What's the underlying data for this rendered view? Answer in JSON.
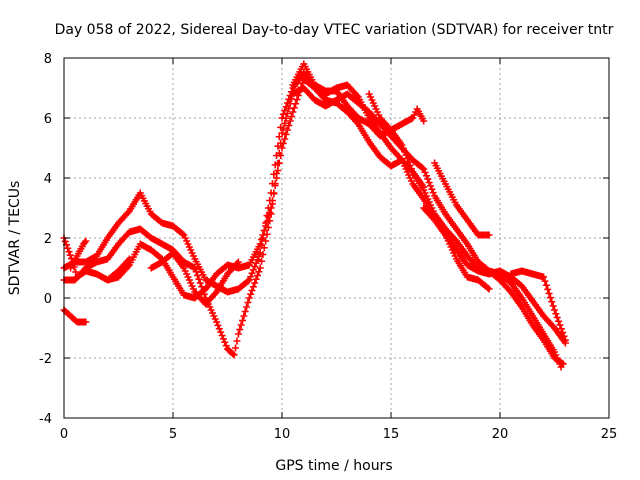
{
  "chart_data": {
    "type": "scatter",
    "title": "Day 058 of 2022, Sidereal Day-to-day VTEC variation (SDTVAR) for receiver tntr",
    "xlabel": "GPS time / hours",
    "ylabel": "SDTVAR / TECUs",
    "xlim": [
      0,
      25
    ],
    "ylim": [
      -4,
      8
    ],
    "xticks": [
      0,
      5,
      10,
      15,
      20,
      25
    ],
    "yticks": [
      -4,
      -2,
      0,
      2,
      4,
      6,
      8
    ],
    "grid": true,
    "marker": "plus",
    "marker_color": "#ff0000",
    "grid_color": "#a0a0a0",
    "series": [
      {
        "name": "trace-1",
        "points": [
          [
            0.0,
            1.0
          ],
          [
            0.5,
            1.2
          ],
          [
            1.0,
            1.2
          ],
          [
            1.5,
            1.4
          ],
          [
            2.0,
            2.0
          ],
          [
            2.5,
            2.5
          ],
          [
            3.0,
            2.9
          ],
          [
            3.5,
            3.5
          ],
          [
            4.0,
            2.8
          ],
          [
            4.5,
            2.5
          ],
          [
            5.0,
            2.4
          ],
          [
            5.5,
            2.1
          ],
          [
            6.0,
            1.3
          ],
          [
            6.5,
            0.6
          ],
          [
            7.0,
            0.4
          ],
          [
            7.5,
            0.2
          ],
          [
            8.0,
            0.3
          ],
          [
            8.5,
            0.6
          ],
          [
            9.0,
            1.5
          ],
          [
            9.5,
            3.5
          ],
          [
            10.0,
            6.0
          ],
          [
            10.5,
            7.0
          ],
          [
            11.0,
            7.5
          ],
          [
            11.5,
            7.0
          ],
          [
            12.0,
            6.8
          ],
          [
            12.5,
            7.0
          ],
          [
            13.0,
            7.1
          ],
          [
            13.5,
            6.7
          ],
          [
            14.0,
            6.0
          ],
          [
            14.5,
            5.5
          ],
          [
            15.0,
            5.0
          ],
          [
            15.5,
            4.6
          ],
          [
            16.0,
            4.2
          ],
          [
            16.5,
            3.6
          ],
          [
            17.0,
            2.8
          ],
          [
            17.5,
            2.3
          ],
          [
            18.0,
            1.9
          ],
          [
            18.5,
            1.4
          ],
          [
            19.0,
            1.0
          ],
          [
            19.5,
            0.9
          ],
          [
            20.0,
            0.8
          ],
          [
            20.5,
            0.5
          ],
          [
            21.0,
            0.0
          ],
          [
            21.5,
            -0.6
          ],
          [
            22.0,
            -1.2
          ],
          [
            22.5,
            -1.8
          ],
          [
            22.8,
            -2.3
          ]
        ]
      },
      {
        "name": "trace-2",
        "points": [
          [
            0.0,
            0.6
          ],
          [
            0.5,
            0.6
          ],
          [
            1.0,
            1.0
          ],
          [
            1.5,
            1.2
          ],
          [
            2.0,
            1.3
          ],
          [
            2.5,
            1.8
          ],
          [
            3.0,
            2.2
          ],
          [
            3.5,
            2.3
          ],
          [
            4.0,
            2.0
          ],
          [
            4.5,
            1.8
          ],
          [
            5.0,
            1.6
          ],
          [
            5.5,
            1.2
          ],
          [
            6.0,
            1.0
          ],
          [
            6.5,
            0.0
          ],
          [
            7.0,
            -0.8
          ],
          [
            7.5,
            -1.7
          ],
          [
            7.8,
            -1.9
          ],
          [
            8.0,
            -1.2
          ],
          [
            8.5,
            0.0
          ],
          [
            9.0,
            1.0
          ],
          [
            9.5,
            2.8
          ],
          [
            10.0,
            5.5
          ],
          [
            10.5,
            6.8
          ],
          [
            11.0,
            7.0
          ],
          [
            11.5,
            6.6
          ],
          [
            12.0,
            6.4
          ],
          [
            12.5,
            6.6
          ],
          [
            13.0,
            6.8
          ],
          [
            13.5,
            6.5
          ],
          [
            14.0,
            6.2
          ],
          [
            14.5,
            5.8
          ],
          [
            15.0,
            5.4
          ],
          [
            15.5,
            5.0
          ],
          [
            16.0,
            4.6
          ],
          [
            16.5,
            4.3
          ],
          [
            17.0,
            3.4
          ],
          [
            17.5,
            2.8
          ],
          [
            18.0,
            2.3
          ],
          [
            18.5,
            1.8
          ],
          [
            19.0,
            1.2
          ],
          [
            19.5,
            0.9
          ],
          [
            20.0,
            0.6
          ],
          [
            20.5,
            0.2
          ],
          [
            21.0,
            -0.3
          ],
          [
            21.5,
            -0.9
          ],
          [
            22.0,
            -1.4
          ],
          [
            22.5,
            -2.0
          ],
          [
            22.9,
            -2.2
          ]
        ]
      },
      {
        "name": "trace-3",
        "points": [
          [
            0.0,
            2.0
          ],
          [
            0.4,
            1.2
          ],
          [
            0.6,
            0.7
          ],
          [
            1.0,
            0.9
          ],
          [
            1.5,
            0.8
          ],
          [
            2.0,
            0.6
          ],
          [
            2.5,
            0.7
          ],
          [
            3.0,
            1.1
          ],
          [
            3.5,
            1.8
          ],
          [
            4.0,
            1.6
          ],
          [
            4.5,
            1.3
          ],
          [
            5.0,
            0.7
          ],
          [
            5.5,
            0.1
          ],
          [
            6.0,
            0.0
          ],
          [
            6.5,
            0.3
          ],
          [
            7.0,
            0.8
          ],
          [
            7.5,
            1.1
          ],
          [
            8.0,
            1.0
          ],
          [
            8.5,
            1.1
          ],
          [
            9.0,
            1.8
          ],
          [
            9.5,
            3.0
          ],
          [
            10.0,
            5.0
          ],
          [
            10.5,
            6.2
          ],
          [
            11.0,
            7.3
          ],
          [
            11.5,
            7.0
          ],
          [
            12.0,
            6.6
          ],
          [
            12.5,
            6.5
          ],
          [
            13.0,
            6.2
          ],
          [
            13.5,
            5.8
          ],
          [
            14.0,
            5.2
          ],
          [
            14.5,
            4.7
          ],
          [
            15.0,
            4.4
          ],
          [
            15.5,
            4.6
          ],
          [
            16.0,
            3.8
          ],
          [
            16.5,
            3.3
          ],
          [
            17.0,
            2.7
          ],
          [
            17.5,
            2.1
          ],
          [
            18.0,
            1.6
          ],
          [
            18.5,
            1.1
          ],
          [
            19.0,
            0.9
          ],
          [
            19.5,
            0.8
          ],
          [
            20.0,
            0.9
          ],
          [
            20.5,
            0.7
          ],
          [
            21.0,
            0.4
          ],
          [
            21.5,
            -0.1
          ],
          [
            22.0,
            -0.6
          ],
          [
            22.5,
            -1.0
          ],
          [
            23.0,
            -1.5
          ]
        ]
      },
      {
        "name": "trace-4",
        "points": [
          [
            0.0,
            -0.4
          ],
          [
            0.3,
            -0.6
          ],
          [
            0.6,
            -0.8
          ],
          [
            1.0,
            -0.8
          ]
        ]
      },
      {
        "name": "trace-5",
        "points": [
          [
            0.3,
            1.0
          ],
          [
            0.6,
            1.4
          ],
          [
            0.9,
            1.8
          ],
          [
            1.0,
            1.9
          ]
        ]
      },
      {
        "name": "trace-6",
        "points": [
          [
            2.0,
            0.6
          ],
          [
            2.5,
            0.9
          ],
          [
            3.0,
            1.3
          ]
        ]
      },
      {
        "name": "trace-7",
        "points": [
          [
            4.0,
            1.0
          ],
          [
            4.5,
            1.2
          ],
          [
            5.0,
            1.5
          ],
          [
            5.5,
            1.0
          ],
          [
            6.0,
            0.2
          ],
          [
            6.5,
            -0.2
          ],
          [
            7.0,
            0.2
          ],
          [
            7.5,
            0.8
          ],
          [
            8.0,
            1.2
          ]
        ]
      },
      {
        "name": "trace-8",
        "points": [
          [
            10.5,
            7.1
          ],
          [
            11.0,
            7.8
          ],
          [
            11.5,
            7.1
          ],
          [
            12.0,
            6.9
          ],
          [
            12.5,
            6.9
          ],
          [
            13.0,
            6.4
          ],
          [
            13.5,
            6.0
          ],
          [
            14.0,
            5.8
          ],
          [
            14.5,
            5.4
          ],
          [
            15.0,
            5.6
          ],
          [
            15.5,
            5.8
          ],
          [
            16.0,
            6.0
          ],
          [
            16.2,
            6.3
          ],
          [
            16.5,
            5.9
          ]
        ]
      },
      {
        "name": "trace-9",
        "points": [
          [
            14.0,
            6.8
          ],
          [
            14.5,
            6.0
          ],
          [
            15.0,
            5.6
          ],
          [
            15.5,
            5.1
          ],
          [
            16.0,
            4.2
          ],
          [
            16.5,
            3.7
          ]
        ]
      },
      {
        "name": "trace-10",
        "points": [
          [
            17.0,
            4.5
          ],
          [
            17.5,
            3.8
          ],
          [
            18.0,
            3.1
          ],
          [
            18.5,
            2.6
          ],
          [
            19.0,
            2.1
          ],
          [
            19.5,
            2.1
          ]
        ]
      },
      {
        "name": "trace-11",
        "points": [
          [
            16.5,
            3.0
          ],
          [
            17.0,
            2.6
          ],
          [
            17.5,
            2.1
          ],
          [
            18.0,
            1.3
          ],
          [
            18.5,
            0.7
          ],
          [
            19.0,
            0.6
          ],
          [
            19.5,
            0.3
          ]
        ]
      },
      {
        "name": "trace-12",
        "points": [
          [
            20.5,
            0.8
          ],
          [
            21.0,
            0.9
          ],
          [
            21.5,
            0.8
          ],
          [
            22.0,
            0.7
          ],
          [
            22.5,
            -0.4
          ],
          [
            23.0,
            -1.4
          ]
        ]
      }
    ]
  }
}
